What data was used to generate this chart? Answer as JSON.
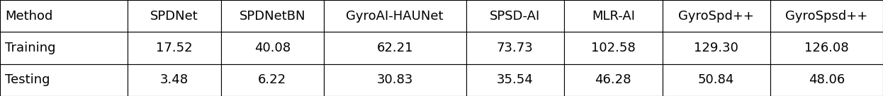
{
  "header_row": [
    "Method",
    "SPDNet",
    "SPDNetBN",
    "GyroAI-HAUNet",
    "SPSD-AI",
    "MLR-AI",
    "GyroSpd++",
    "GyroSpsd++"
  ],
  "rows": [
    [
      "Training",
      "17.52",
      "40.08",
      "62.21",
      "73.73",
      "102.58",
      "129.30",
      "126.08"
    ],
    [
      "Testing",
      "3.48",
      "6.22",
      "30.83",
      "35.54",
      "46.28",
      "50.84",
      "48.06"
    ]
  ],
  "col_widths": [
    1.3,
    0.95,
    1.05,
    1.45,
    1.0,
    1.0,
    1.1,
    1.15
  ],
  "background_color": "#ffffff",
  "border_color": "#000000",
  "text_color": "#000000",
  "font_size": 13
}
